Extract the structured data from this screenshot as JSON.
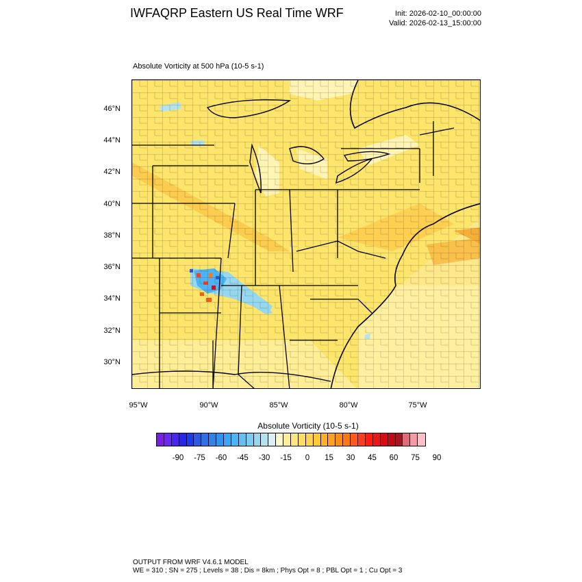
{
  "header": {
    "title": "IWFAQRP Eastern US Real Time WRF",
    "init": "Init: 2026-02-10_00:00:00",
    "valid": "Valid: 2026-02-13_15:00:00"
  },
  "field": {
    "title": "Absolute Vorticity at 500 hPa   (10-5 s-1)"
  },
  "map": {
    "lat_labels": [
      "46°N",
      "44°N",
      "42°N",
      "40°N",
      "38°N",
      "36°N",
      "34°N",
      "32°N",
      "30°N"
    ],
    "lon_labels": [
      "95°W",
      "90°W",
      "85°W",
      "80°W",
      "75°W"
    ]
  },
  "colorbar": {
    "title": "Absolute Vorticity  (10-5 s-1)",
    "ticks": [
      "-90",
      "-75",
      "-60",
      "-45",
      "-30",
      "-15",
      "0",
      "15",
      "30",
      "45",
      "60",
      "75",
      "90"
    ],
    "colors": [
      "#7a1ee0",
      "#6a2af0",
      "#4a26f0",
      "#2626e8",
      "#1e3ce6",
      "#2a5ae6",
      "#2f70e6",
      "#3282e6",
      "#2f93f2",
      "#3aa6f5",
      "#4ab4f4",
      "#62c0f2",
      "#7acdf0",
      "#96d8ef",
      "#b4e3ef",
      "#dbeff4",
      "#fff8cc",
      "#ffee99",
      "#ffe680",
      "#ffdc66",
      "#ffd250",
      "#ffc838",
      "#ffb428",
      "#ffa01e",
      "#ff8c14",
      "#ff7814",
      "#ff5a1e",
      "#ff3c1e",
      "#ff1e14",
      "#f01414",
      "#d80a14",
      "#c00a14",
      "#a81420",
      "#e06a78",
      "#f49aa4",
      "#ffc0c8"
    ]
  },
  "footer": {
    "line1": "OUTPUT FROM WRF V4.6.1 MODEL",
    "line2": "WE = 310 ; SN = 275 ; Levels = 38 ; Dis = 8km ; Phys Opt = 8 ; PBL Opt = 1 ; Cu Opt = 3"
  }
}
